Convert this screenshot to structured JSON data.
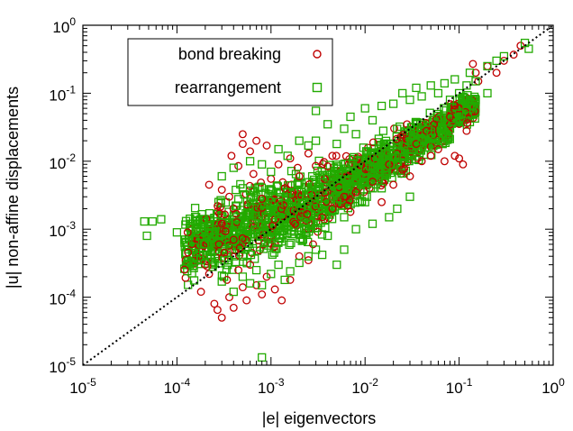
{
  "chart_data": {
    "type": "scatter",
    "title": "",
    "xlabel": "|e| eigenvectors",
    "ylabel": "|u| non-affine displacements",
    "xscale": "log",
    "yscale": "log",
    "xlim": [
      1e-05,
      1
    ],
    "ylim": [
      1e-05,
      1
    ],
    "grid": false,
    "legend_position": "top-left",
    "xticks": [
      1e-05,
      0.0001,
      0.001,
      0.01,
      0.1,
      1
    ],
    "yticks": [
      1e-05,
      0.0001,
      0.001,
      0.01,
      0.1,
      1
    ],
    "tick_labels": [
      {
        "base": "10",
        "exp": "-5"
      },
      {
        "base": "10",
        "exp": "-4"
      },
      {
        "base": "10",
        "exp": "-3"
      },
      {
        "base": "10",
        "exp": "-2"
      },
      {
        "base": "10",
        "exp": "-1"
      },
      {
        "base": "10",
        "exp": "0"
      }
    ],
    "reference_line": {
      "style": "dotted",
      "color": "#000000",
      "x": [
        1e-05,
        1
      ],
      "y": [
        1e-05,
        1
      ]
    },
    "series": [
      {
        "name": "bond breaking",
        "marker": "circle",
        "color": "#c00000",
        "points": [
          [
            0.00013,
            0.0009
          ],
          [
            0.00018,
            0.00012
          ],
          [
            0.0002,
            0.0003
          ],
          [
            0.00022,
            0.00022
          ],
          [
            0.00025,
            8e-05
          ],
          [
            0.00027,
            6.5e-05
          ],
          [
            0.0003,
            5e-05
          ],
          [
            0.00032,
            0.00045
          ],
          [
            0.00034,
            0.00018
          ],
          [
            0.00036,
            0.0001
          ],
          [
            0.0004,
            7e-05
          ],
          [
            0.00045,
            0.00025
          ],
          [
            0.0005,
            0.00014
          ],
          [
            0.00055,
            9e-05
          ],
          [
            0.0006,
            0.0003
          ],
          [
            0.0007,
            0.00015
          ],
          [
            0.0008,
            0.00011
          ],
          [
            0.0009,
            0.0002
          ],
          [
            0.0011,
            0.00013
          ],
          [
            0.0013,
            9e-05
          ],
          [
            0.0016,
            0.00018
          ],
          [
            0.002,
            0.0004
          ],
          [
            0.0025,
            0.00035
          ],
          [
            0.0028,
            0.0006
          ],
          [
            0.00022,
            0.0045
          ],
          [
            0.0003,
            0.0038
          ],
          [
            0.00036,
            0.003
          ],
          [
            0.00038,
            0.012
          ],
          [
            0.00045,
            0.0085
          ],
          [
            0.0005,
            0.018
          ],
          [
            0.0005,
            0.025
          ],
          [
            0.0006,
            0.014
          ],
          [
            0.00065,
            0.0065
          ],
          [
            0.0007,
            0.02
          ],
          [
            0.0008,
            0.0028
          ],
          [
            0.0009,
            0.017
          ],
          [
            0.001,
            0.0055
          ],
          [
            0.0012,
            0.009
          ],
          [
            0.0014,
            0.004
          ],
          [
            0.0016,
            0.011
          ],
          [
            0.002,
            0.006
          ],
          [
            0.0025,
            0.013
          ],
          [
            0.0003,
            0.0012
          ],
          [
            0.0004,
            0.0007
          ],
          [
            0.00028,
            0.0006
          ],
          [
            0.0045,
            0.002
          ],
          [
            0.006,
            0.003
          ],
          [
            0.008,
            0.0035
          ],
          [
            0.012,
            0.005
          ],
          [
            0.015,
            0.0025
          ],
          [
            0.02,
            0.0045
          ],
          [
            0.025,
            0.0075
          ],
          [
            0.03,
            0.006
          ],
          [
            0.04,
            0.01
          ],
          [
            0.05,
            0.012
          ],
          [
            0.06,
            0.015
          ],
          [
            0.07,
            0.01
          ],
          [
            0.09,
            0.012
          ],
          [
            0.1,
            0.011
          ],
          [
            0.11,
            0.009
          ],
          [
            0.12,
            0.028
          ],
          [
            0.045,
            0.028
          ],
          [
            0.08,
            0.045
          ],
          [
            0.1,
            0.06
          ],
          [
            0.15,
            0.2
          ],
          [
            0.16,
            0.15
          ],
          [
            0.2,
            0.25
          ],
          [
            0.25,
            0.2
          ],
          [
            0.14,
            0.27
          ],
          [
            0.38,
            0.37
          ],
          [
            0.3,
            0.3
          ],
          [
            0.45,
            0.5
          ],
          [
            0.035,
            0.018
          ],
          [
            0.018,
            0.009
          ],
          [
            0.0035,
            0.0015
          ],
          [
            0.0018,
            0.0012
          ],
          [
            0.007,
            0.0018
          ]
        ]
      },
      {
        "name": "rearrangement",
        "marker": "square",
        "color": "#22aa00",
        "points": [
          [
            4.5e-05,
            0.0013
          ],
          [
            5.5e-05,
            0.0013
          ],
          [
            6.8e-05,
            0.0014
          ],
          [
            4.8e-05,
            0.0008
          ],
          [
            0.0001,
            0.0009
          ],
          [
            0.00012,
            0.0007
          ],
          [
            0.00014,
            0.0012
          ],
          [
            0.00016,
            0.00045
          ],
          [
            0.00018,
            0.00035
          ],
          [
            0.0002,
            0.0006
          ],
          [
            0.00024,
            0.00028
          ],
          [
            0.0003,
            0.00017
          ],
          [
            0.00035,
            0.00035
          ],
          [
            0.0004,
            0.00012
          ],
          [
            0.0005,
            0.0002
          ],
          [
            0.0006,
            0.00016
          ],
          [
            0.0007,
            0.00025
          ],
          [
            0.0008,
            0.00015
          ],
          [
            0.001,
            0.00022
          ],
          [
            0.0012,
            0.0003
          ],
          [
            0.0014,
            0.00018
          ],
          [
            0.0016,
            0.00024
          ],
          [
            0.002,
            0.00032
          ],
          [
            0.0025,
            0.0004
          ],
          [
            0.003,
            0.0005
          ],
          [
            0.0035,
            0.00042
          ],
          [
            0.005,
            0.0003
          ],
          [
            0.006,
            0.0005
          ],
          [
            0.0008,
            1.3e-05
          ],
          [
            0.0003,
            0.006
          ],
          [
            0.0004,
            0.008
          ],
          [
            0.0005,
            0.004
          ],
          [
            0.0006,
            0.01
          ],
          [
            0.0008,
            0.009
          ],
          [
            0.001,
            0.007
          ],
          [
            0.0012,
            0.015
          ],
          [
            0.0015,
            0.012
          ],
          [
            0.002,
            0.02
          ],
          [
            0.0025,
            0.017
          ],
          [
            0.003,
            0.02
          ],
          [
            0.003,
            0.055
          ],
          [
            0.004,
            0.035
          ],
          [
            0.005,
            0.018
          ],
          [
            0.006,
            0.03
          ],
          [
            0.007,
            0.045
          ],
          [
            0.008,
            0.025
          ],
          [
            0.01,
            0.06
          ],
          [
            0.012,
            0.04
          ],
          [
            0.015,
            0.065
          ],
          [
            0.02,
            0.07
          ],
          [
            0.025,
            0.1
          ],
          [
            0.03,
            0.08
          ],
          [
            0.035,
            0.12
          ],
          [
            0.04,
            0.09
          ],
          [
            0.05,
            0.13
          ],
          [
            0.06,
            0.1
          ],
          [
            0.07,
            0.14
          ],
          [
            0.08,
            0.08
          ],
          [
            0.1,
            0.1
          ],
          [
            0.12,
            0.13
          ],
          [
            0.15,
            0.15
          ],
          [
            0.2,
            0.25
          ],
          [
            0.25,
            0.3
          ],
          [
            0.3,
            0.35
          ],
          [
            0.5,
            0.55
          ],
          [
            0.55,
            0.45
          ],
          [
            0.13,
            0.2
          ],
          [
            0.09,
            0.16
          ],
          [
            0.02,
            0.009
          ],
          [
            0.03,
            0.012
          ],
          [
            0.04,
            0.02
          ],
          [
            0.05,
            0.025
          ],
          [
            0.08,
            0.03
          ],
          [
            0.1,
            0.05
          ],
          [
            0.12,
            0.06
          ],
          [
            0.15,
            0.08
          ],
          [
            0.2,
            0.1
          ],
          [
            0.01,
            0.005
          ],
          [
            0.015,
            0.004
          ],
          [
            0.018,
            0.0015
          ],
          [
            0.022,
            0.002
          ],
          [
            0.03,
            0.003
          ],
          [
            0.012,
            0.0012
          ],
          [
            0.008,
            0.001
          ],
          [
            0.006,
            0.0015
          ],
          [
            0.01,
            0.0025
          ],
          [
            0.004,
            0.0008
          ],
          [
            0.0015,
            0.0035
          ],
          [
            0.0012,
            0.0025
          ]
        ]
      }
    ],
    "dense_cluster": {
      "colors": [
        "#22aa00",
        "#c00000"
      ],
      "bands": [
        {
          "x": [
            0.00012,
            0.0003
          ],
          "y": [
            0.00015,
            0.003
          ]
        },
        {
          "x": [
            0.0003,
            0.0008
          ],
          "y": [
            0.0002,
            0.006
          ]
        },
        {
          "x": [
            0.0008,
            0.002
          ],
          "y": [
            0.0003,
            0.008
          ]
        },
        {
          "x": [
            0.002,
            0.005
          ],
          "y": [
            0.0006,
            0.012
          ]
        },
        {
          "x": [
            0.005,
            0.012
          ],
          "y": [
            0.0015,
            0.02
          ]
        },
        {
          "x": [
            0.012,
            0.03
          ],
          "y": [
            0.004,
            0.035
          ]
        },
        {
          "x": [
            0.03,
            0.08
          ],
          "y": [
            0.01,
            0.06
          ]
        },
        {
          "x": [
            0.08,
            0.15
          ],
          "y": [
            0.03,
            0.1
          ]
        }
      ]
    }
  }
}
